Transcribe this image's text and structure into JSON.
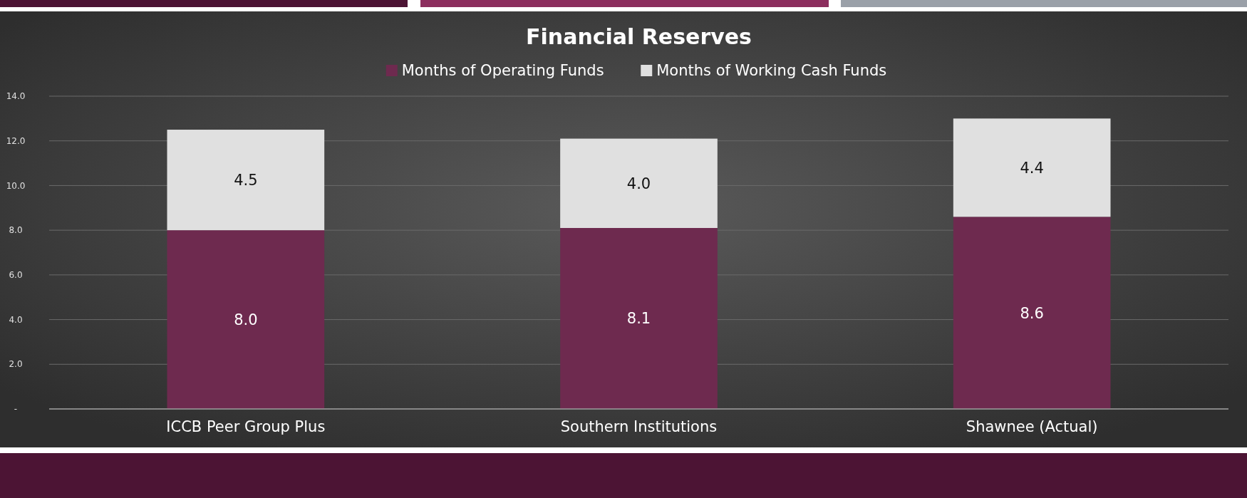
{
  "chart_data": {
    "type": "bar",
    "title": "Financial Reserves",
    "stacked": true,
    "categories": [
      "ICCB Peer Group Plus",
      "Southern Institutions",
      "Shawnee (Actual)"
    ],
    "series": [
      {
        "name": "Months of Operating Funds",
        "color": "#6e2a4f",
        "values": [
          8.0,
          8.1,
          8.6
        ],
        "value_labels": [
          "8.0",
          "8.1",
          "8.6"
        ]
      },
      {
        "name": "Months of Working Cash Funds",
        "color": "#e0e0e0",
        "values": [
          4.5,
          4.0,
          4.4
        ],
        "value_labels": [
          "4.5",
          "4.0",
          "4.4"
        ]
      }
    ],
    "ylim": [
      0,
      14
    ],
    "yticks": [
      {
        "value": 0,
        "label": "-"
      },
      {
        "value": 2,
        "label": "2.0"
      },
      {
        "value": 4,
        "label": "4.0"
      },
      {
        "value": 6,
        "label": "6.0"
      },
      {
        "value": 8,
        "label": "8.0"
      },
      {
        "value": 10,
        "label": "10.0"
      },
      {
        "value": 12,
        "label": "12.0"
      },
      {
        "value": 14,
        "label": "14.0"
      }
    ],
    "grid": "y",
    "legend": "top"
  }
}
